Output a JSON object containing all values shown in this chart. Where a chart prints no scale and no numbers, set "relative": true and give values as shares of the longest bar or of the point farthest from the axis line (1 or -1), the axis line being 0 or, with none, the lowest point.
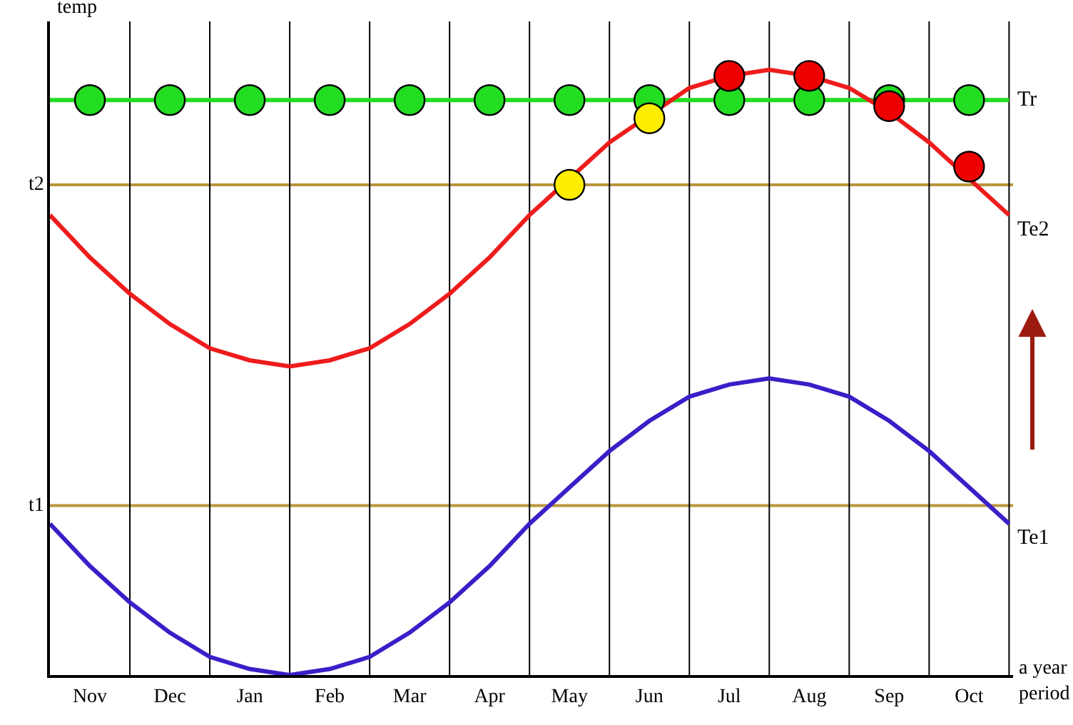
{
  "chart_data": {
    "type": "line",
    "relative": true,
    "ylabel": "temp",
    "xlabel": "a year period",
    "categories": [
      null,
      "Nov",
      null,
      "Dec",
      null,
      "Jan",
      null,
      "Feb",
      null,
      "Mar",
      null,
      "Apr",
      null,
      "May",
      null,
      "Jun",
      null,
      "Jul",
      null,
      "Aug",
      null,
      "Sep",
      null,
      "Oct",
      null
    ],
    "grid": "x",
    "legend": false,
    "tick_labels": "x",
    "marker": "none",
    "line_style": "solid",
    "ref_lines": [
      {
        "axis": "y",
        "value": 0.81,
        "label": "t2",
        "color": "#b8963c"
      },
      {
        "axis": "y",
        "value": 0.28,
        "label": "t1",
        "color": "#b8963c"
      }
    ],
    "series": [
      {
        "name": "Tr",
        "color": "#22dd22",
        "values": [
          0.95,
          0.95,
          0.95,
          0.95,
          0.95,
          0.95,
          0.95,
          0.95,
          0.95,
          0.95,
          0.95,
          0.95,
          0.95,
          0.95,
          0.95,
          0.95,
          0.95,
          0.95,
          0.95,
          0.95,
          0.95,
          null,
          0.95,
          0.95,
          0.95
        ]
      },
      {
        "name": "Te2",
        "color": "#ee1c1c",
        "values": [
          0.76,
          0.69,
          0.63,
          0.58,
          0.54,
          0.52,
          0.51,
          0.52,
          0.54,
          0.58,
          0.63,
          0.69,
          0.76,
          null,
          0.88,
          null,
          0.97,
          0.99,
          1.0,
          0.99,
          0.97,
          0.93,
          0.88,
          0.82,
          0.76
        ]
      },
      {
        "name": "Te1",
        "color": "#3a1fc8",
        "values": [
          0.25,
          0.18,
          0.12,
          0.07,
          0.03,
          0.01,
          0,
          0.01,
          0.03,
          0.07,
          0.12,
          0.18,
          0.25,
          0.31,
          0.37,
          0.42,
          0.46,
          0.48,
          0.49,
          0.48,
          0.46,
          0.42,
          0.37,
          0.31,
          0.25
        ]
      },
      {
        "type": "scatter",
        "marker": "circle",
        "color": "#22dd22",
        "values": [
          null,
          0.95,
          null,
          0.95,
          null,
          0.95,
          null,
          0.95,
          null,
          0.95,
          null,
          0.95,
          null,
          0.95,
          null,
          0.95,
          null,
          0.95,
          null,
          0.95,
          null,
          0.95,
          null,
          0.95,
          null
        ]
      },
      {
        "type": "scatter",
        "marker": "circle",
        "color": "#ffee00",
        "values": [
          null,
          null,
          null,
          null,
          null,
          null,
          null,
          null,
          null,
          null,
          null,
          null,
          null,
          0.81,
          null,
          0.92,
          null,
          null,
          null,
          null,
          null,
          null,
          null,
          null,
          null
        ]
      },
      {
        "type": "scatter",
        "marker": "circle",
        "color": "#ee0000",
        "values": [
          null,
          null,
          null,
          null,
          null,
          null,
          null,
          null,
          null,
          null,
          null,
          null,
          null,
          null,
          null,
          null,
          null,
          0.99,
          null,
          0.99,
          null,
          0.94,
          null,
          0.84,
          null
        ]
      }
    ]
  }
}
